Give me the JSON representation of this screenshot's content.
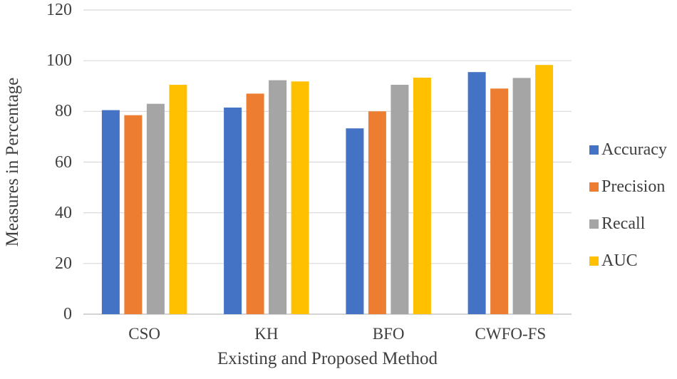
{
  "chart_data": {
    "type": "bar",
    "title": "",
    "xlabel": "Existing and Proposed Method",
    "ylabel": "Measures in Percentage",
    "categories": [
      "CSO",
      "KH",
      "BFO",
      "CWFO-FS"
    ],
    "series": [
      {
        "name": "Accuracy",
        "color": "#4472C4",
        "values": [
          80.5,
          81.5,
          73.3,
          95.5
        ]
      },
      {
        "name": "Precision",
        "color": "#ED7D31",
        "values": [
          78.5,
          87.0,
          80.0,
          89.0
        ]
      },
      {
        "name": "Recall",
        "color": "#A5A5A5",
        "values": [
          83.0,
          92.3,
          90.5,
          93.2
        ]
      },
      {
        "name": "AUC",
        "color": "#FFC000",
        "values": [
          90.5,
          91.8,
          93.3,
          98.3
        ]
      }
    ],
    "ylim": [
      0,
      120
    ],
    "ytick_step": 20,
    "yticks": [
      "0",
      "20",
      "40",
      "60",
      "80",
      "100",
      "120"
    ],
    "grid": true,
    "legend_position": "right",
    "colors": {
      "gridline": "#D8D8D8",
      "axis_line": "#C6C6C6",
      "text": "#3F3F3F",
      "background": "#FFFFFF"
    }
  }
}
